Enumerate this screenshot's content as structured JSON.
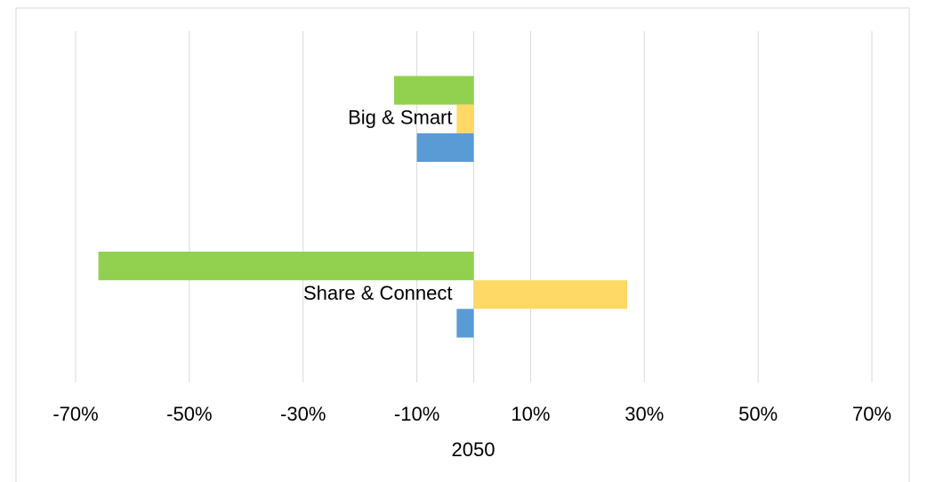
{
  "chart_data": {
    "type": "hbar",
    "categories": [
      "Big & Smart",
      "Share & Connect"
    ],
    "series": [
      {
        "color": "#92d050",
        "values": [
          -14,
          -66
        ]
      },
      {
        "color": "#ffd966",
        "values": [
          -3,
          27
        ]
      },
      {
        "color": "#5b9bd5",
        "values": [
          -10,
          -3
        ]
      }
    ],
    "xlim": [
      -70,
      70
    ],
    "xticks": [
      {
        "value": -70,
        "label": "-70%"
      },
      {
        "value": -50,
        "label": "-50%"
      },
      {
        "value": -30,
        "label": "-30%"
      },
      {
        "value": -10,
        "label": "-10%"
      },
      {
        "value": 10,
        "label": "10%"
      },
      {
        "value": 30,
        "label": "30%"
      },
      {
        "value": 50,
        "label": "50%"
      },
      {
        "value": 70,
        "label": "70%"
      }
    ],
    "x_label": "2050",
    "grid": true
  }
}
